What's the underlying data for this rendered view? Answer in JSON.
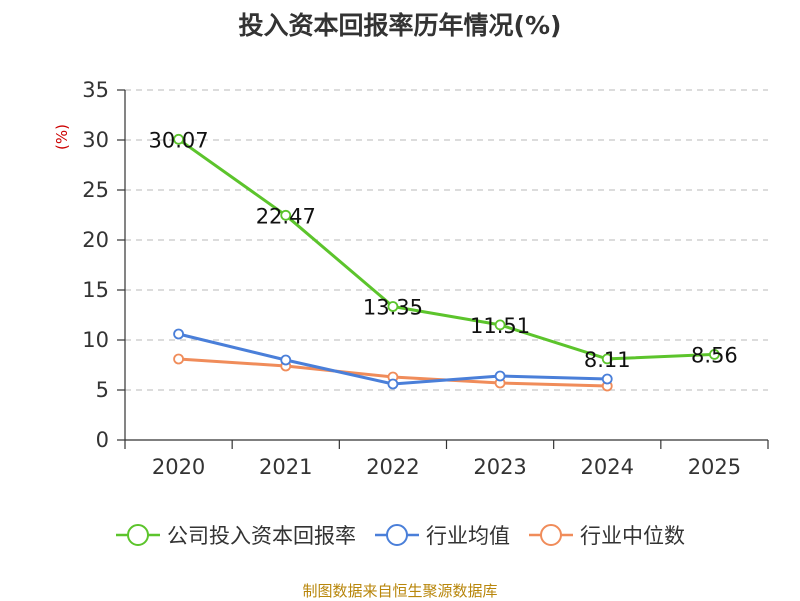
{
  "chart_data": {
    "type": "line",
    "title": "投入资本回报率历年情况(%)",
    "ylabel": "(%)",
    "xlabel": "",
    "categories": [
      "2020",
      "2021",
      "2022",
      "2023",
      "2024",
      "2025"
    ],
    "ylim": [
      0,
      35
    ],
    "yticks": [
      0,
      5,
      10,
      15,
      20,
      25,
      30,
      35
    ],
    "grid": true,
    "legend_position": "bottom",
    "series": [
      {
        "name": "公司投入资本回报率",
        "color": "#5cc42c",
        "values": [
          30.07,
          22.47,
          13.35,
          11.51,
          8.11,
          8.56
        ],
        "labels": [
          "30.07",
          "22.47",
          "13.35",
          "11.51",
          "8.11",
          "8.56"
        ]
      },
      {
        "name": "行业均值",
        "color": "#4a7fd9",
        "values": [
          10.6,
          8.0,
          5.6,
          6.4,
          6.1,
          null
        ]
      },
      {
        "name": "行业中位数",
        "color": "#f08c5a",
        "values": [
          8.1,
          7.4,
          6.3,
          5.7,
          5.4,
          null
        ]
      }
    ]
  },
  "source": "制图数据来自恒生聚源数据库"
}
